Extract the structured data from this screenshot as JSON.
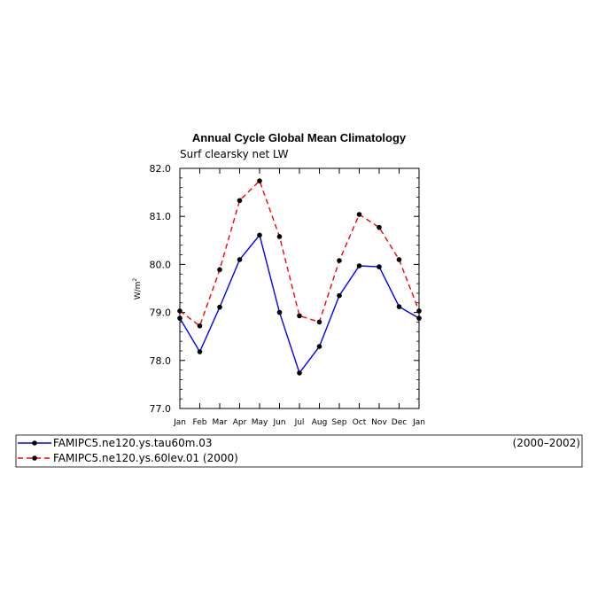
{
  "chart_data": {
    "type": "line",
    "title": "Annual Cycle Global Mean Climatology",
    "subtitle": "Surf clearsky net LW",
    "ylabel": "W/m",
    "ylabel_sup": "2",
    "categories": [
      "Jan",
      "Feb",
      "Mar",
      "Apr",
      "May",
      "Jun",
      "Jul",
      "Aug",
      "Sep",
      "Oct",
      "Nov",
      "Dec",
      "Jan"
    ],
    "ylim": [
      77.0,
      82.0
    ],
    "yticks": [
      "77.0",
      "78.0",
      "79.0",
      "80.0",
      "81.0",
      "82.0"
    ],
    "grid": false,
    "legend_position": "bottom",
    "series": [
      {
        "name": "FAMIPC5.ne120.ys.tau60m.03",
        "years": "(2000–2002)",
        "color": "#0000ff",
        "dash": "solid",
        "values": [
          78.88,
          78.18,
          79.11,
          80.1,
          80.61,
          79.0,
          77.74,
          78.29,
          79.35,
          79.97,
          79.95,
          79.12,
          78.88
        ]
      },
      {
        "name": "FAMIPC5.ne120.ys.60lev.01 (2000)",
        "years": "",
        "color": "#ff0000",
        "dash": "dashed",
        "values": [
          79.03,
          78.72,
          79.89,
          81.33,
          81.74,
          80.58,
          78.93,
          78.8,
          80.08,
          81.04,
          80.77,
          80.1,
          79.03
        ]
      }
    ]
  }
}
